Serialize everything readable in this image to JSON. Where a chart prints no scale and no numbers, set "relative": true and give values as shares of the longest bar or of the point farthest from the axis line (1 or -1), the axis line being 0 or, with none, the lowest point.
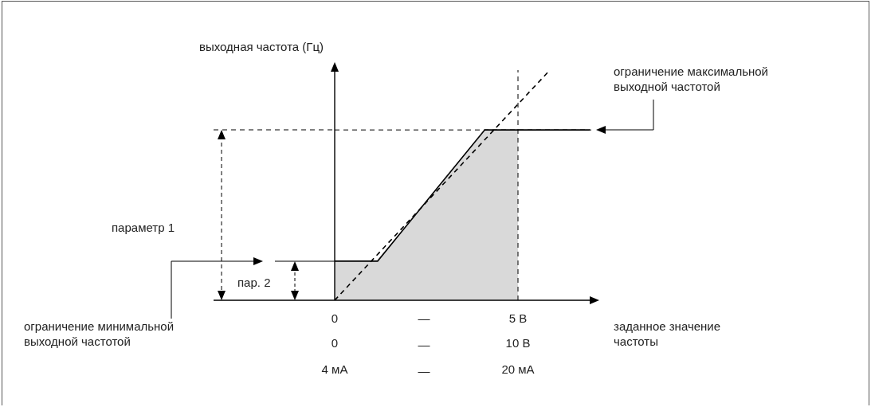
{
  "chart_data": {
    "type": "line",
    "relative": true,
    "ylabel": "выходная частота (Гц)",
    "xlim": [
      0,
      7
    ],
    "xticks": [
      0,
      {
        "value": 5,
        "label": "5 В"
      }
    ],
    "series": [
      {
        "type": "area",
        "color": "#d9d9d9",
        "x": [
          0,
          1.17,
          4.09,
          5
        ],
        "values": [
          0.17,
          0.17,
          0.74,
          0.74
        ]
      },
      {
        "color": "#000000",
        "x": [
          0,
          1.17,
          4.09,
          6.96
        ],
        "values": [
          0.17,
          0.17,
          0.74,
          0.74
        ]
      },
      {
        "color": "#000000",
        "line_style": "dashed",
        "x": [
          0,
          5.87
        ],
        "values": [
          0,
          1
        ]
      }
    ],
    "ref_lines": [
      {
        "axis": "x",
        "value": 5,
        "color": "#000000",
        "line_style": "dashed"
      },
      {
        "axis": "y",
        "value": 0.74,
        "color": "#000000",
        "line_style": "dashed"
      }
    ],
    "annotations": [
      "параметр 1",
      "пар. 2",
      "ограничение максимальной\nвыходной частотой",
      "ограничение минимальной\nвыходной частотой",
      "заданное значение\nчастоты",
      "—\n—\n—",
      "0",
      "10 В",
      "4 мА",
      "20 мА"
    ]
  }
}
